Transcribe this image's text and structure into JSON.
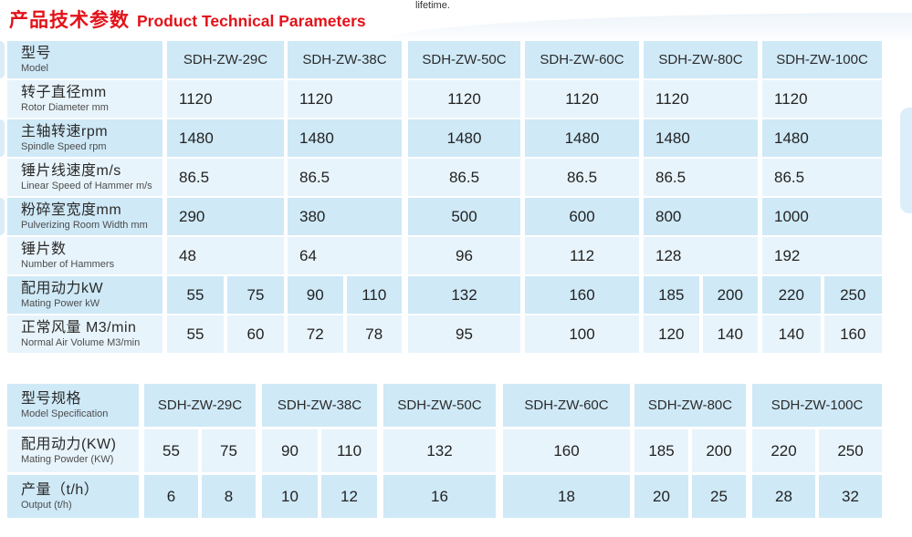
{
  "page": {
    "top_note": "lifetime.",
    "title": {
      "zh": "产品技术参数",
      "en": "Product Technical Parameters"
    },
    "colors": {
      "accent_red": "#e31219",
      "cell_dark": "#cfe9f7",
      "cell_light": "#e8f4fb",
      "text": "#2b2b2b"
    }
  },
  "table1": {
    "header": {
      "zh": "型号",
      "en": "Model"
    },
    "models": [
      "SDH-ZW-29C",
      "SDH-ZW-38C",
      "SDH-ZW-50C",
      "SDH-ZW-60C",
      "SDH-ZW-80C",
      "SDH-ZW-100C"
    ],
    "rows": [
      {
        "label_zh": "转子直径mm",
        "label_en": "Rotor Diameter mm",
        "values": [
          "1120",
          "1120",
          "1120",
          "1120",
          "1120",
          "1120"
        ]
      },
      {
        "label_zh": "主轴转速rpm",
        "label_en": "Spindle Speed rpm",
        "values": [
          "1480",
          "1480",
          "1480",
          "1480",
          "1480",
          "1480"
        ]
      },
      {
        "label_zh": "锤片线速度m/s",
        "label_en": "Linear Speed of Hammer m/s",
        "values": [
          "86.5",
          "86.5",
          "86.5",
          "86.5",
          "86.5",
          "86.5"
        ]
      },
      {
        "label_zh": "粉碎室宽度mm",
        "label_en": "Pulverizing Room Width mm",
        "values": [
          "290",
          "380",
          "500",
          "600",
          "800",
          "1000"
        ]
      },
      {
        "label_zh": "锤片数",
        "label_en": "Number of Hammers",
        "values": [
          "48",
          "64",
          "96",
          "112",
          "128",
          "192"
        ]
      },
      {
        "label_zh": "配用动力kW",
        "label_en": "Mating Power kW",
        "values": [
          [
            "55",
            "75"
          ],
          [
            "90",
            "110"
          ],
          "132",
          "160",
          [
            "185",
            "200"
          ],
          [
            "220",
            "250"
          ]
        ]
      },
      {
        "label_zh": "正常风量 M3/min",
        "label_en": "Normal Air Volume M3/min",
        "values": [
          [
            "55",
            "60"
          ],
          [
            "72",
            "78"
          ],
          "95",
          "100",
          [
            "120",
            "140"
          ],
          [
            "140",
            "160"
          ]
        ]
      }
    ]
  },
  "table2": {
    "header": {
      "zh": "型号规格",
      "en": "Model Specification"
    },
    "models": [
      "SDH-ZW-29C",
      "SDH-ZW-38C",
      "SDH-ZW-50C",
      "SDH-ZW-60C",
      "SDH-ZW-80C",
      "SDH-ZW-100C"
    ],
    "rows": [
      {
        "label_zh": "配用动力(KW)",
        "label_en": "Mating Powder (KW)",
        "values": [
          [
            "55",
            "75"
          ],
          [
            "90",
            "110"
          ],
          "132",
          "160",
          [
            "185",
            "200"
          ],
          [
            "220",
            "250"
          ]
        ]
      },
      {
        "label_zh": "产量（t/h）",
        "label_en": "Output (t/h)",
        "values": [
          [
            "6",
            "8"
          ],
          [
            "10",
            "12"
          ],
          "16",
          "18",
          [
            "20",
            "25"
          ],
          [
            "28",
            "32"
          ]
        ]
      }
    ]
  }
}
